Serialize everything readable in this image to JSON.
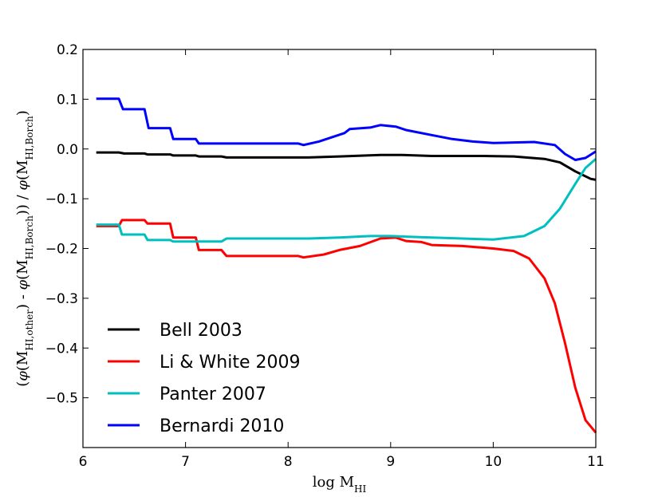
{
  "chart_data": {
    "type": "line",
    "xlabel": "log M_HI",
    "ylabel": "(φ(M_HI,other) - φ(M_HI,Borch)) / φ(M_HI,Borch)",
    "xlim": [
      6,
      11
    ],
    "ylim": [
      -0.6,
      0.2
    ],
    "xticks": [
      6,
      7,
      8,
      9,
      10,
      11
    ],
    "xtick_labels": [
      "6",
      "7",
      "8",
      "9",
      "10",
      "11"
    ],
    "yticks": [
      0.2,
      0.1,
      0.0,
      -0.1,
      -0.2,
      -0.3,
      -0.4,
      -0.5
    ],
    "ytick_labels": [
      "0.2",
      "0.1",
      "0.0",
      "−0.1",
      "−0.2",
      "−0.3",
      "−0.4",
      "−0.5"
    ],
    "legend_position": "lower-left",
    "grid": false,
    "series": [
      {
        "name": "Bell 2003",
        "color": "#000000",
        "points": [
          [
            6.13,
            -0.007
          ],
          [
            6.35,
            -0.007
          ],
          [
            6.4,
            -0.009
          ],
          [
            6.6,
            -0.009
          ],
          [
            6.63,
            -0.011
          ],
          [
            6.85,
            -0.011
          ],
          [
            6.88,
            -0.013
          ],
          [
            7.1,
            -0.013
          ],
          [
            7.13,
            -0.015
          ],
          [
            7.35,
            -0.015
          ],
          [
            7.4,
            -0.017
          ],
          [
            8.2,
            -0.017
          ],
          [
            8.5,
            -0.015
          ],
          [
            8.9,
            -0.012
          ],
          [
            9.1,
            -0.012
          ],
          [
            9.4,
            -0.014
          ],
          [
            9.9,
            -0.014
          ],
          [
            10.2,
            -0.015
          ],
          [
            10.5,
            -0.02
          ],
          [
            10.65,
            -0.027
          ],
          [
            10.8,
            -0.045
          ],
          [
            10.95,
            -0.06
          ],
          [
            11.0,
            -0.062
          ]
        ]
      },
      {
        "name": "Li & White 2009",
        "color": "#ff0000",
        "points": [
          [
            6.13,
            -0.155
          ],
          [
            6.35,
            -0.155
          ],
          [
            6.38,
            -0.143
          ],
          [
            6.6,
            -0.143
          ],
          [
            6.63,
            -0.15
          ],
          [
            6.85,
            -0.15
          ],
          [
            6.88,
            -0.178
          ],
          [
            7.1,
            -0.178
          ],
          [
            7.13,
            -0.203
          ],
          [
            7.35,
            -0.203
          ],
          [
            7.4,
            -0.215
          ],
          [
            8.1,
            -0.215
          ],
          [
            8.15,
            -0.218
          ],
          [
            8.35,
            -0.212
          ],
          [
            8.5,
            -0.203
          ],
          [
            8.7,
            -0.195
          ],
          [
            8.9,
            -0.18
          ],
          [
            9.05,
            -0.178
          ],
          [
            9.15,
            -0.185
          ],
          [
            9.3,
            -0.187
          ],
          [
            9.4,
            -0.193
          ],
          [
            9.7,
            -0.195
          ],
          [
            10.0,
            -0.2
          ],
          [
            10.2,
            -0.205
          ],
          [
            10.35,
            -0.22
          ],
          [
            10.5,
            -0.26
          ],
          [
            10.6,
            -0.31
          ],
          [
            10.7,
            -0.39
          ],
          [
            10.8,
            -0.48
          ],
          [
            10.9,
            -0.545
          ],
          [
            11.0,
            -0.57
          ]
        ]
      },
      {
        "name": "Panter 2007",
        "color": "#00bfbf",
        "points": [
          [
            6.13,
            -0.152
          ],
          [
            6.35,
            -0.152
          ],
          [
            6.38,
            -0.172
          ],
          [
            6.6,
            -0.172
          ],
          [
            6.63,
            -0.183
          ],
          [
            6.85,
            -0.183
          ],
          [
            6.88,
            -0.186
          ],
          [
            7.35,
            -0.186
          ],
          [
            7.4,
            -0.18
          ],
          [
            8.2,
            -0.18
          ],
          [
            8.5,
            -0.178
          ],
          [
            8.8,
            -0.175
          ],
          [
            9.0,
            -0.175
          ],
          [
            9.4,
            -0.178
          ],
          [
            9.7,
            -0.18
          ],
          [
            10.0,
            -0.182
          ],
          [
            10.3,
            -0.175
          ],
          [
            10.5,
            -0.155
          ],
          [
            10.65,
            -0.12
          ],
          [
            10.8,
            -0.07
          ],
          [
            10.9,
            -0.038
          ],
          [
            11.0,
            -0.02
          ]
        ]
      },
      {
        "name": "Bernardi 2010",
        "color": "#0000ff",
        "points": [
          [
            6.13,
            0.101
          ],
          [
            6.35,
            0.101
          ],
          [
            6.39,
            0.08
          ],
          [
            6.6,
            0.08
          ],
          [
            6.64,
            0.042
          ],
          [
            6.85,
            0.042
          ],
          [
            6.88,
            0.02
          ],
          [
            7.1,
            0.02
          ],
          [
            7.13,
            0.011
          ],
          [
            7.4,
            0.011
          ],
          [
            8.1,
            0.011
          ],
          [
            8.15,
            0.008
          ],
          [
            8.3,
            0.015
          ],
          [
            8.55,
            0.032
          ],
          [
            8.6,
            0.04
          ],
          [
            8.8,
            0.043
          ],
          [
            8.9,
            0.048
          ],
          [
            9.05,
            0.045
          ],
          [
            9.15,
            0.038
          ],
          [
            9.4,
            0.028
          ],
          [
            9.6,
            0.02
          ],
          [
            9.8,
            0.015
          ],
          [
            10.0,
            0.012
          ],
          [
            10.2,
            0.013
          ],
          [
            10.4,
            0.014
          ],
          [
            10.6,
            0.008
          ],
          [
            10.7,
            -0.01
          ],
          [
            10.8,
            -0.022
          ],
          [
            10.9,
            -0.018
          ],
          [
            11.0,
            -0.005
          ]
        ]
      }
    ]
  }
}
